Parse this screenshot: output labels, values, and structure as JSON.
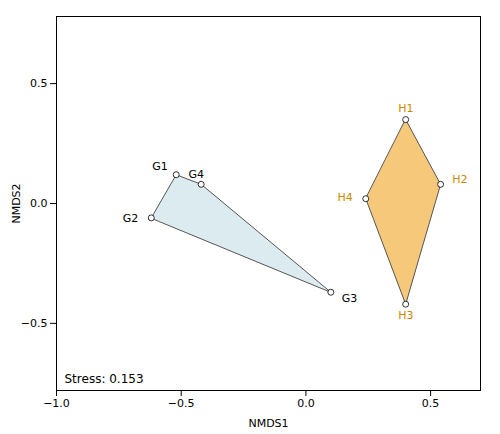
{
  "chart_data": {
    "type": "scatter",
    "xlabel": "NMDS1",
    "ylabel": "NMDS2",
    "xlim": [
      -1.0,
      0.7
    ],
    "ylim": [
      -0.78,
      0.78
    ],
    "xticks": [
      {
        "value": -1.0,
        "label": "−1.0"
      },
      {
        "value": -0.5,
        "label": "−0.5"
      },
      {
        "value": 0.0,
        "label": "0.0"
      },
      {
        "value": 0.5,
        "label": "0.5"
      }
    ],
    "yticks": [
      {
        "value": -0.5,
        "label": "−0.5"
      },
      {
        "value": 0.0,
        "label": "0.0"
      },
      {
        "value": 0.5,
        "label": "0.5"
      }
    ],
    "series": [
      {
        "labels": [
          "G2",
          "G1",
          "G4",
          "G3"
        ],
        "x": [
          -0.62,
          -0.52,
          -0.42,
          0.1
        ],
        "y": [
          -0.06,
          0.12,
          0.08,
          -0.37
        ],
        "color": "#b8d8e0",
        "label_color": "black"
      },
      {
        "labels": [
          "H1",
          "H2",
          "H3",
          "H4"
        ],
        "x": [
          0.4,
          0.54,
          0.4,
          0.24
        ],
        "y": [
          0.35,
          0.08,
          -0.42,
          0.02
        ],
        "color": "#f5c26a",
        "label_color": "#cc8800"
      }
    ],
    "annotations": [
      {
        "text": "Stress: 0.153"
      }
    ]
  }
}
